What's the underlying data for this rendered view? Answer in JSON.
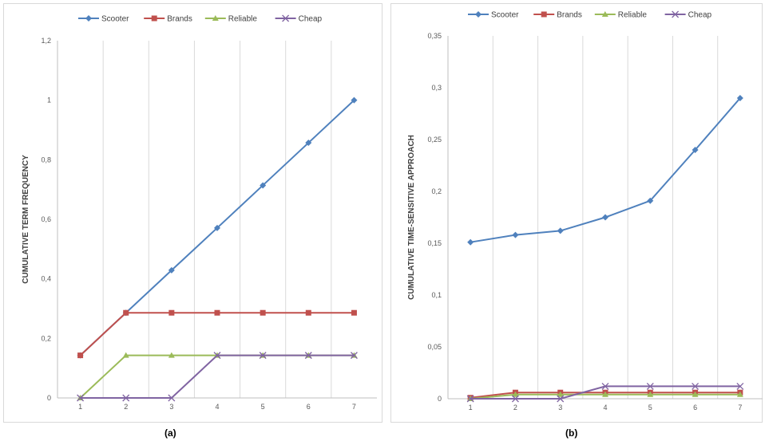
{
  "chart_data": [
    {
      "type": "line",
      "caption": "(a)",
      "ylabel": "CUMULATIVE TERM FREQUENCY",
      "xlabel": "",
      "categories": [
        "1",
        "2",
        "3",
        "4",
        "5",
        "6",
        "7"
      ],
      "ylim": [
        0,
        1.2
      ],
      "yticks": [
        "0",
        "0,2",
        "0,4",
        "0,6",
        "0,8",
        "1",
        "1,2"
      ],
      "ytick_values": [
        0,
        0.2,
        0.4,
        0.6,
        0.8,
        1.0,
        1.2
      ],
      "legend_position": "top",
      "grid": "vertical",
      "series": [
        {
          "name": "Scooter",
          "color": "#4f81bd",
          "marker": "diamond",
          "values": [
            0.143,
            0.286,
            0.429,
            0.571,
            0.714,
            0.857,
            1.0
          ]
        },
        {
          "name": "Brands",
          "color": "#c0504d",
          "marker": "square",
          "values": [
            0.143,
            0.286,
            0.286,
            0.286,
            0.286,
            0.286,
            0.286
          ]
        },
        {
          "name": "Reliable",
          "color": "#9bbb59",
          "marker": "triangle",
          "values": [
            0,
            0.143,
            0.143,
            0.143,
            0.143,
            0.143,
            0.143
          ]
        },
        {
          "name": "Cheap",
          "color": "#8064a2",
          "marker": "x",
          "values": [
            0,
            0,
            0,
            0.143,
            0.143,
            0.143,
            0.143
          ]
        }
      ]
    },
    {
      "type": "line",
      "caption": "(b)",
      "ylabel": "CUMULATIVE  TIME-SENSITIVE APPROACH",
      "xlabel": "",
      "categories": [
        "1",
        "2",
        "3",
        "4",
        "5",
        "6",
        "7"
      ],
      "ylim": [
        0,
        0.35
      ],
      "yticks": [
        "0",
        "0,05",
        "0,1",
        "0,15",
        "0,2",
        "0,25",
        "0,3",
        "0,35"
      ],
      "ytick_values": [
        0,
        0.05,
        0.1,
        0.15,
        0.2,
        0.25,
        0.3,
        0.35
      ],
      "legend_position": "top",
      "grid": "vertical",
      "series": [
        {
          "name": "Scooter",
          "color": "#4f81bd",
          "marker": "diamond",
          "values": [
            0.151,
            0.158,
            0.162,
            0.175,
            0.191,
            0.24,
            0.29
          ]
        },
        {
          "name": "Brands",
          "color": "#c0504d",
          "marker": "square",
          "values": [
            0.001,
            0.006,
            0.006,
            0.006,
            0.006,
            0.006,
            0.006
          ]
        },
        {
          "name": "Reliable",
          "color": "#9bbb59",
          "marker": "triangle",
          "values": [
            0,
            0.004,
            0.004,
            0.004,
            0.004,
            0.004,
            0.004
          ]
        },
        {
          "name": "Cheap",
          "color": "#8064a2",
          "marker": "x",
          "values": [
            0,
            0,
            0,
            0.012,
            0.012,
            0.012,
            0.012
          ]
        }
      ]
    }
  ]
}
